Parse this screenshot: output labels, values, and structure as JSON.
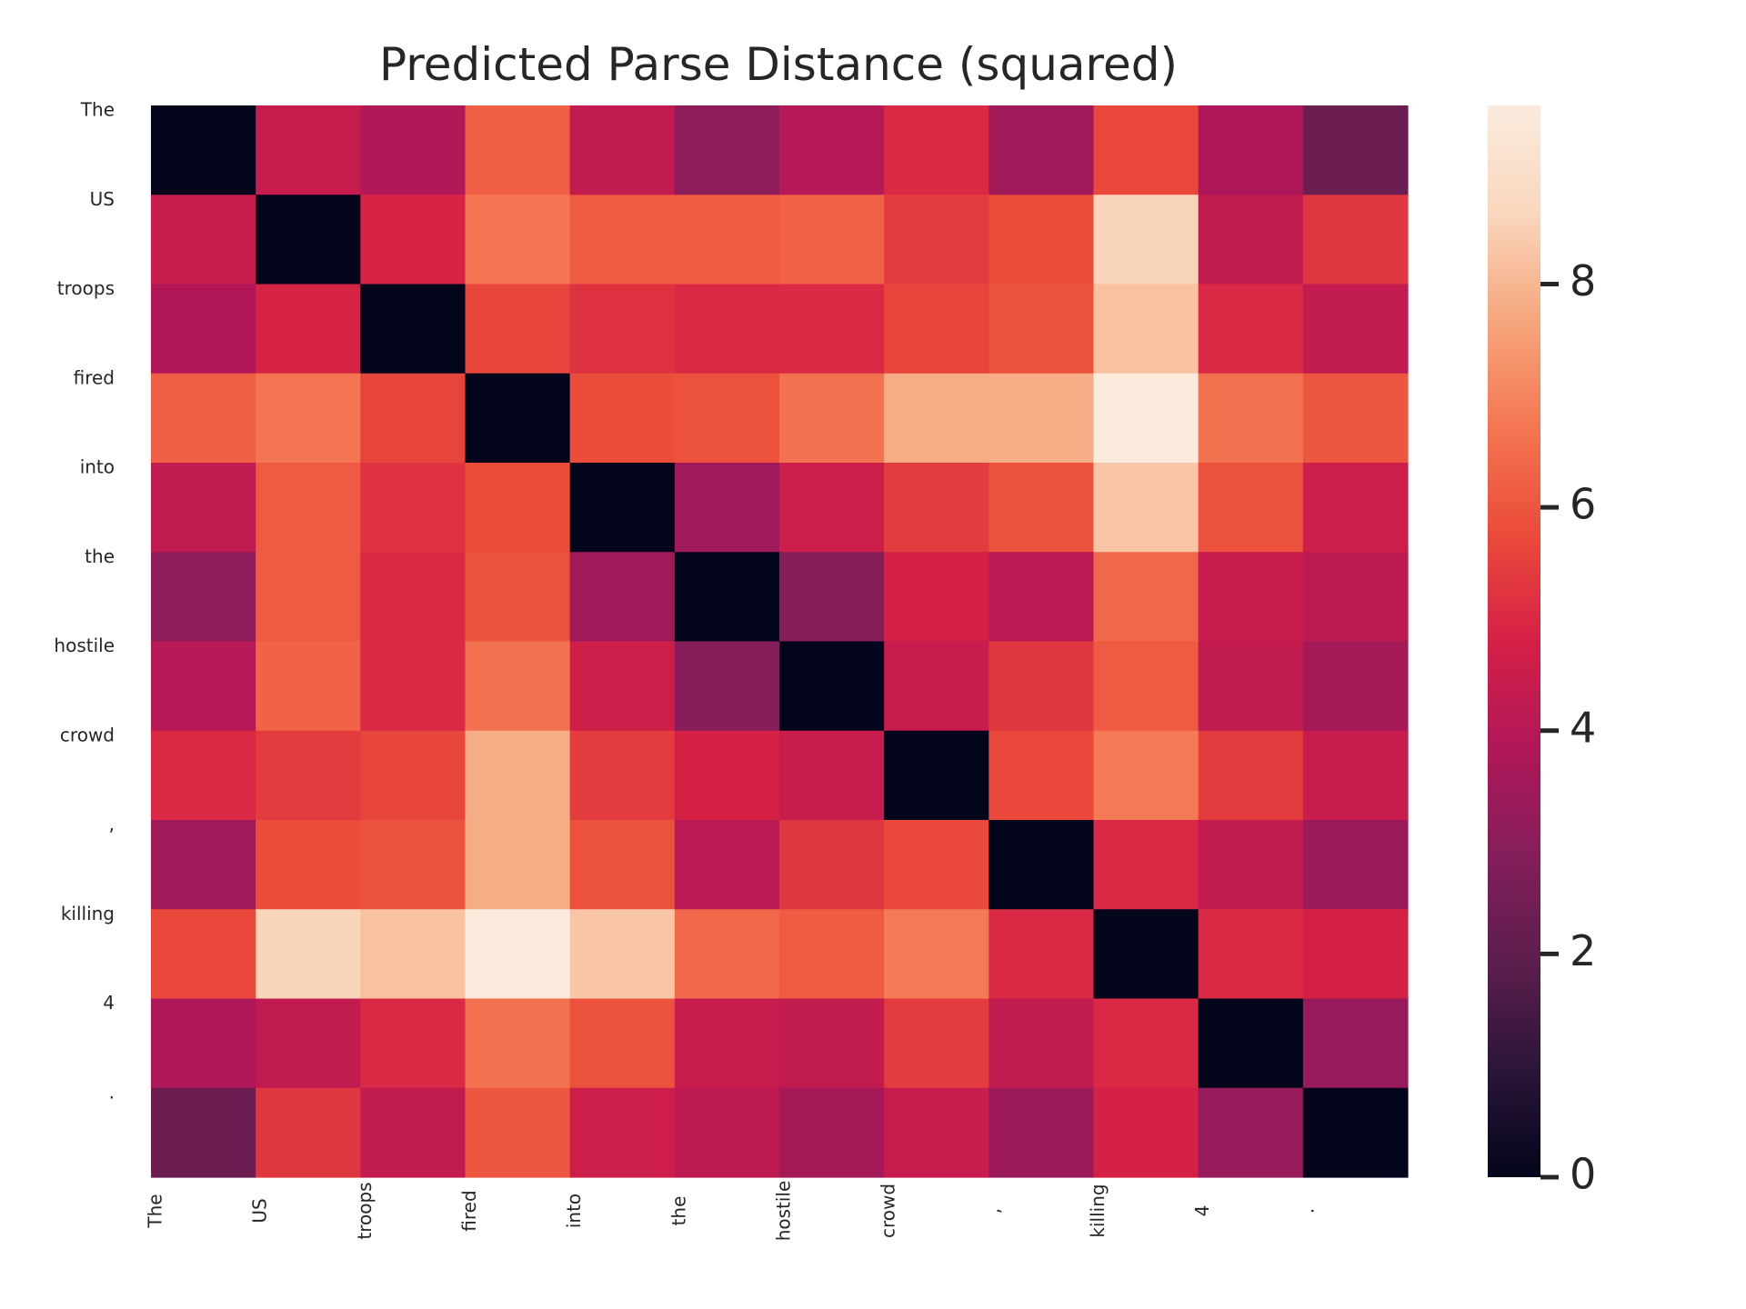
{
  "chart_data": {
    "type": "heatmap",
    "title": "Predicted Parse Distance (squared)",
    "xlabel": "",
    "ylabel": "",
    "row_labels": [
      "The",
      "US",
      "troops",
      "fired",
      "into",
      "the",
      "hostile",
      "crowd",
      ",",
      "killing",
      "4",
      "."
    ],
    "col_labels": [
      "The",
      "US",
      "troops",
      "fired",
      "into",
      "the",
      "hostile",
      "crowd",
      ",",
      "killing",
      "4",
      "."
    ],
    "values": [
      [
        0.0,
        4.4,
        3.9,
        6.2,
        4.3,
        3.1,
        4.0,
        5.0,
        3.5,
        5.7,
        3.8,
        2.3
      ],
      [
        4.4,
        0.0,
        4.9,
        6.7,
        6.1,
        6.1,
        6.3,
        5.4,
        5.8,
        8.6,
        4.3,
        5.3
      ],
      [
        3.9,
        4.9,
        0.0,
        5.6,
        5.2,
        5.0,
        5.0,
        5.6,
        5.9,
        8.2,
        5.0,
        4.3
      ],
      [
        6.2,
        6.7,
        5.6,
        0.0,
        5.8,
        5.9,
        6.6,
        7.8,
        7.8,
        9.6,
        6.6,
        6.0
      ],
      [
        4.3,
        6.1,
        5.2,
        5.8,
        0.0,
        3.5,
        4.6,
        5.4,
        5.9,
        8.3,
        5.9,
        4.6
      ],
      [
        3.1,
        6.1,
        5.0,
        5.9,
        3.5,
        0.0,
        2.9,
        4.8,
        4.1,
        6.4,
        4.4,
        4.2
      ],
      [
        4.0,
        6.3,
        5.0,
        6.6,
        4.6,
        2.9,
        0.0,
        4.4,
        5.3,
        6.1,
        4.3,
        3.6
      ],
      [
        5.0,
        5.4,
        5.6,
        7.8,
        5.4,
        4.8,
        4.4,
        0.0,
        5.7,
        6.8,
        5.4,
        4.4
      ],
      [
        3.5,
        5.8,
        5.9,
        7.8,
        5.9,
        4.1,
        5.3,
        5.7,
        0.0,
        5.0,
        4.3,
        3.4
      ],
      [
        5.7,
        8.6,
        8.2,
        9.6,
        8.3,
        6.4,
        6.1,
        6.8,
        5.0,
        0.0,
        5.0,
        4.8
      ],
      [
        3.8,
        4.3,
        5.0,
        6.6,
        5.9,
        4.4,
        4.3,
        5.4,
        4.3,
        5.0,
        0.0,
        3.3
      ],
      [
        2.3,
        5.3,
        4.3,
        6.0,
        4.6,
        4.2,
        3.6,
        4.4,
        3.4,
        4.8,
        3.3,
        0.0
      ]
    ],
    "colorbar": {
      "min": 0,
      "max": 9.6,
      "ticks": [
        0,
        2,
        4,
        6,
        8
      ],
      "colormap": "rocket",
      "color_stops": [
        "#03051a",
        "#2b1539",
        "#5c1e4d",
        "#841e5a",
        "#b01759",
        "#d52046",
        "#eb4b3a",
        "#f37651",
        "#f6a67d",
        "#f9d7bd",
        "#faebdd"
      ]
    },
    "grid": false,
    "legend": "colorbar-right"
  }
}
